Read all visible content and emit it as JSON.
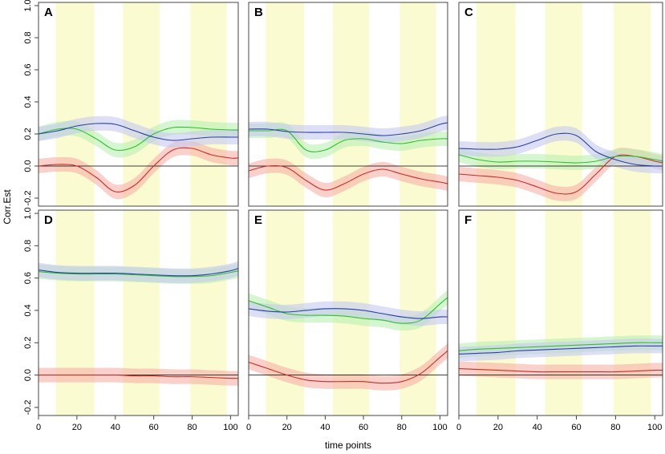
{
  "figure": {
    "y_axis_label": "Corr.Est",
    "x_axis_label": "time points"
  },
  "chart_data": {
    "type": "line",
    "xlim": [
      0,
      104
    ],
    "ylim": [
      -0.25,
      1.02
    ],
    "x_ticks": [
      "0",
      "20",
      "40",
      "60",
      "80",
      "100"
    ],
    "y_ticks": [
      "-0.2",
      "0.0",
      "0.2",
      "0.4",
      "0.6",
      "0.8",
      "1.0"
    ],
    "x_tick_values": [
      0,
      20,
      40,
      60,
      80,
      100
    ],
    "y_tick_values": [
      -0.2,
      0,
      0.2,
      0.4,
      0.6,
      0.8,
      1.0
    ],
    "reference_line": 0,
    "shaded_intervals": [
      [
        9,
        29
      ],
      [
        44,
        63
      ],
      [
        79,
        98
      ]
    ],
    "series_colors": {
      "blue": "#2b3ea8",
      "green": "#2fc02f",
      "red": "#cc2b2b"
    },
    "band_colors": {
      "blue": "#c7c9f0",
      "green": "#b9f0b0",
      "red": "#f6b0a8",
      "shade": "#fbfbd2"
    },
    "band_halfwidth": 0.045,
    "x": [
      0,
      10,
      20,
      30,
      40,
      50,
      60,
      70,
      80,
      90,
      100,
      104
    ],
    "panels": [
      {
        "label": "A",
        "series": [
          {
            "name": "blue",
            "values": [
              0.2,
              0.22,
              0.25,
              0.265,
              0.26,
              0.22,
              0.18,
              0.16,
              0.17,
              0.18,
              0.18,
              0.18
            ]
          },
          {
            "name": "green",
            "values": [
              0.2,
              0.23,
              0.23,
              0.17,
              0.1,
              0.12,
              0.2,
              0.24,
              0.24,
              0.23,
              0.225,
              0.225
            ]
          },
          {
            "name": "red",
            "values": [
              0.0,
              0.01,
              0.0,
              -0.07,
              -0.16,
              -0.12,
              0.0,
              0.1,
              0.11,
              0.07,
              0.05,
              0.05
            ]
          }
        ]
      },
      {
        "label": "B",
        "series": [
          {
            "name": "blue",
            "values": [
              0.23,
              0.23,
              0.215,
              0.21,
              0.21,
              0.21,
              0.2,
              0.19,
              0.2,
              0.22,
              0.26,
              0.27
            ]
          },
          {
            "name": "green",
            "values": [
              0.22,
              0.22,
              0.22,
              0.1,
              0.1,
              0.16,
              0.17,
              0.15,
              0.14,
              0.16,
              0.17,
              0.17
            ]
          },
          {
            "name": "red",
            "values": [
              -0.03,
              0.0,
              -0.01,
              -0.09,
              -0.15,
              -0.11,
              -0.05,
              -0.02,
              -0.05,
              -0.08,
              -0.1,
              -0.11
            ]
          }
        ]
      },
      {
        "label": "C",
        "series": [
          {
            "name": "blue",
            "values": [
              0.11,
              0.105,
              0.105,
              0.12,
              0.16,
              0.2,
              0.19,
              0.09,
              0.04,
              0.01,
              0.0,
              0.0
            ]
          },
          {
            "name": "green",
            "values": [
              0.07,
              0.04,
              0.025,
              0.03,
              0.03,
              0.025,
              0.02,
              0.03,
              0.06,
              0.06,
              0.04,
              0.03
            ]
          },
          {
            "name": "red",
            "values": [
              -0.05,
              -0.06,
              -0.07,
              -0.09,
              -0.13,
              -0.17,
              -0.16,
              -0.05,
              0.06,
              0.06,
              0.03,
              0.02
            ]
          }
        ]
      },
      {
        "label": "D",
        "series": [
          {
            "name": "blue",
            "values": [
              0.65,
              0.635,
              0.63,
              0.63,
              0.63,
              0.625,
              0.62,
              0.615,
              0.615,
              0.625,
              0.645,
              0.66
            ]
          },
          {
            "name": "green",
            "values": [
              0.64,
              0.63,
              0.625,
              0.625,
              0.625,
              0.62,
              0.615,
              0.61,
              0.61,
              0.615,
              0.635,
              0.645
            ]
          },
          {
            "name": "red",
            "values": [
              0.0,
              0.0,
              0.0,
              0.0,
              0.0,
              -0.005,
              -0.005,
              -0.01,
              -0.01,
              -0.015,
              -0.02,
              -0.02
            ]
          }
        ]
      },
      {
        "label": "E",
        "series": [
          {
            "name": "blue",
            "values": [
              0.41,
              0.395,
              0.39,
              0.4,
              0.41,
              0.41,
              0.4,
              0.38,
              0.36,
              0.35,
              0.36,
              0.36
            ]
          },
          {
            "name": "green",
            "values": [
              0.46,
              0.42,
              0.38,
              0.37,
              0.37,
              0.365,
              0.35,
              0.34,
              0.32,
              0.34,
              0.44,
              0.48
            ]
          },
          {
            "name": "red",
            "values": [
              0.08,
              0.04,
              0.0,
              -0.03,
              -0.04,
              -0.04,
              -0.04,
              -0.05,
              -0.04,
              0.01,
              0.11,
              0.15
            ]
          }
        ]
      },
      {
        "label": "F",
        "series": [
          {
            "name": "blue",
            "values": [
              0.13,
              0.135,
              0.14,
              0.15,
              0.155,
              0.16,
              0.165,
              0.17,
              0.175,
              0.18,
              0.18,
              0.18
            ]
          },
          {
            "name": "green",
            "values": [
              0.15,
              0.16,
              0.165,
              0.17,
              0.175,
              0.18,
              0.185,
              0.19,
              0.195,
              0.2,
              0.2,
              0.2
            ]
          },
          {
            "name": "red",
            "values": [
              0.04,
              0.035,
              0.03,
              0.025,
              0.02,
              0.02,
              0.02,
              0.02,
              0.02,
              0.025,
              0.03,
              0.03
            ]
          }
        ]
      }
    ]
  }
}
